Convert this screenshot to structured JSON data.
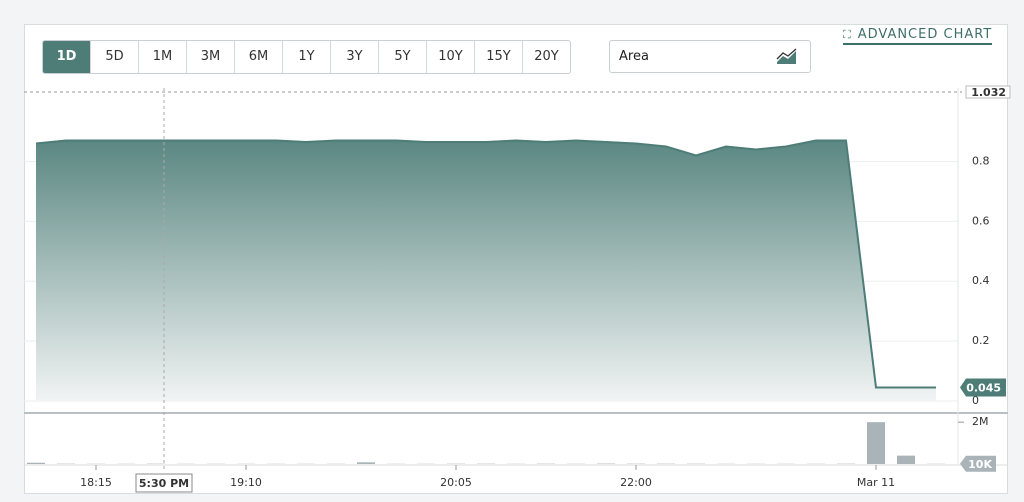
{
  "toolbar": {
    "ranges": [
      "1D",
      "5D",
      "1M",
      "3M",
      "6M",
      "1Y",
      "3Y",
      "5Y",
      "10Y",
      "15Y",
      "20Y"
    ],
    "active_range": 0,
    "chart_style": "Area",
    "advanced_chart": "ADVANCED CHART"
  },
  "chart_data": {
    "type": "area",
    "categories": [
      null,
      null,
      "18:15",
      null,
      null,
      null,
      null,
      "19:10",
      null,
      null,
      null,
      null,
      null,
      null,
      "20:05",
      null,
      null,
      null,
      null,
      null,
      "22:00",
      null,
      null,
      null,
      null,
      null,
      null,
      null,
      "Mar 11",
      null,
      null
    ],
    "series": [
      {
        "color": "#4e7d78",
        "values": [
          0.86,
          0.87,
          0.87,
          0.87,
          0.87,
          0.87,
          0.87,
          0.87,
          0.87,
          0.865,
          0.87,
          0.87,
          0.87,
          0.865,
          0.865,
          0.865,
          0.87,
          0.865,
          0.87,
          0.865,
          0.86,
          0.85,
          0.82,
          0.85,
          0.84,
          0.85,
          0.87,
          0.87,
          0.045,
          0.045,
          0.045
        ]
      }
    ],
    "ylim": [
      0,
      1.032
    ],
    "yticks": [
      0,
      0.2,
      0.4,
      0.6,
      0.8
    ],
    "grid": true,
    "reference_line": 1.032,
    "crosshair_label": "5:30 PM",
    "volume": {
      "color": "#a9b3b8",
      "values": [
        60000,
        15000,
        10000,
        10000,
        15000,
        10000,
        10000,
        10000,
        10000,
        10000,
        10000,
        80000,
        10000,
        10000,
        15000,
        15000,
        10000,
        15000,
        10000,
        20000,
        15000,
        15000,
        15000,
        10000,
        10000,
        10000,
        10000,
        15000,
        2000000,
        400000,
        10000
      ],
      "value_labels": [
        null,
        null,
        null,
        null,
        null,
        null,
        null,
        null,
        null,
        null,
        null,
        null,
        null,
        null,
        null,
        null,
        null,
        null,
        null,
        null,
        null,
        null,
        null,
        null,
        null,
        null,
        null,
        null,
        null,
        null,
        "10K"
      ],
      "ylim": [
        0,
        2200000
      ],
      "yticks": [
        {
          "value": 2000000,
          "label": "2M"
        }
      ]
    }
  }
}
